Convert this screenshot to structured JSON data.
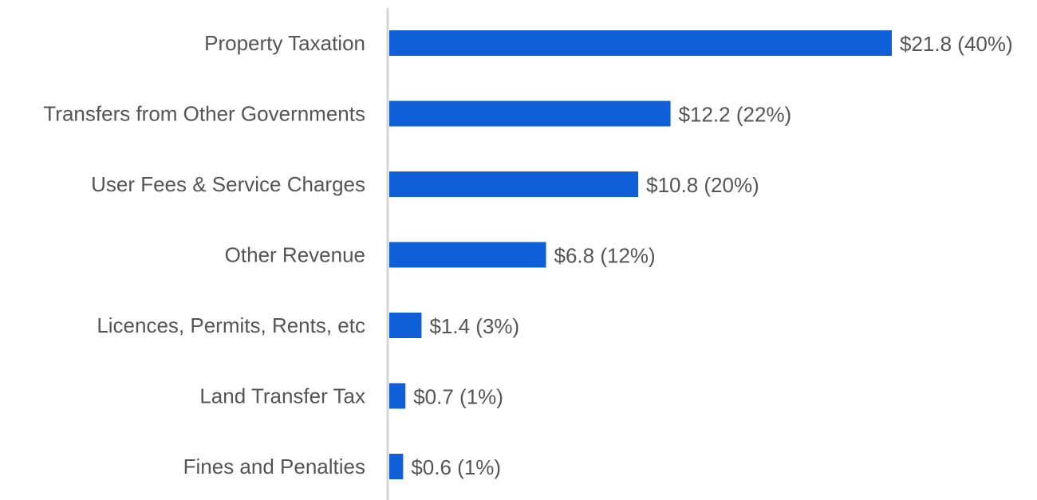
{
  "chart_data": {
    "type": "bar",
    "orientation": "horizontal",
    "title": "",
    "xlabel": "",
    "ylabel": "",
    "categories": [
      "Property Taxation",
      "Transfers from Other Governments",
      "User Fees & Service Charges",
      "Other Revenue",
      "Licences, Permits, Rents, etc",
      "Land Transfer Tax",
      "Fines and Penalties"
    ],
    "values": [
      21.8,
      12.2,
      10.8,
      6.8,
      1.4,
      0.7,
      0.6
    ],
    "data_labels": [
      "$21.8 (40%)",
      "$12.2 (22%)",
      "$10.8 (20%)",
      "$6.8 (12%)",
      "$1.4 (3%)",
      "$0.7 (1%)",
      "$0.6 (1%)"
    ],
    "xlim": [
      0,
      22
    ],
    "grid": false,
    "legend": "none",
    "colors": {
      "bar": "#0f5fd8",
      "axis": "#d4d4d4",
      "text": "#555555"
    }
  }
}
